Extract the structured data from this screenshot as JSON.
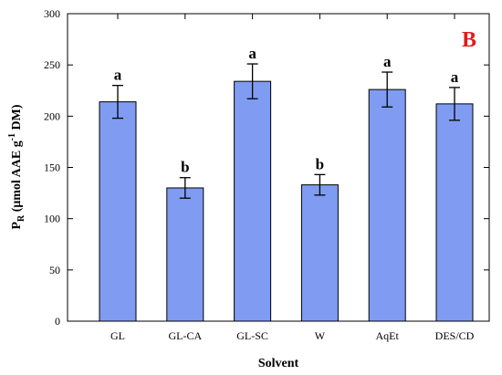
{
  "chart_data": {
    "type": "bar",
    "panel_label": "B",
    "colors": {
      "bar_fill": "#7f9cf2",
      "bar_stroke": "#000000",
      "panel_label": "#e31b1b"
    },
    "categories": [
      "GL",
      "GL-CA",
      "GL-SC",
      "W",
      "AqEt",
      "DES/CD"
    ],
    "values": [
      214,
      130,
      234,
      133,
      226,
      212
    ],
    "errors": [
      16,
      10,
      17,
      10,
      17,
      16
    ],
    "significance": [
      "a",
      "b",
      "a",
      "b",
      "a",
      "a"
    ],
    "xlabel": "Solvent",
    "ylabel": {
      "main": "P",
      "sub": "R",
      "text1": " (μmol AAE g",
      "sup": "-1",
      "text2": " DM)"
    },
    "ylim": [
      0,
      300
    ],
    "yticks": [
      0,
      50,
      100,
      150,
      200,
      250,
      300
    ],
    "grid": false,
    "legend": "none"
  }
}
